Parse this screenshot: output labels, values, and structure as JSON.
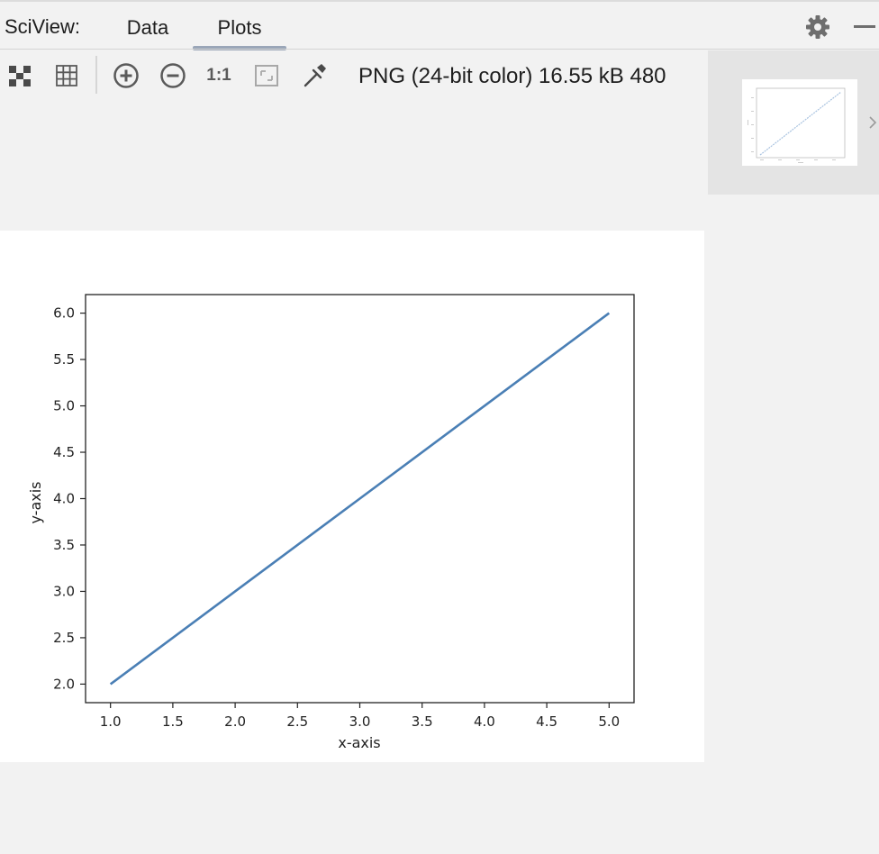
{
  "header": {
    "tool_title": "SciView:",
    "tabs": [
      {
        "label": "Data",
        "active": false
      },
      {
        "label": "Plots",
        "active": true
      }
    ]
  },
  "toolbar": {
    "image_info": "480 PNG (24-bit color) 16.55 kB",
    "icons": [
      "fit-to-window-icon",
      "grid-icon",
      "zoom-in-icon",
      "zoom-out-icon",
      "actual-size-icon",
      "background-icon",
      "color-picker-icon"
    ],
    "actual_size_label": "1:1"
  },
  "colors": {
    "line": "#4a7fb5",
    "panel_bg": "#f2f2f2",
    "thumb_panel_bg": "#e4e4e4",
    "tab_underline": "#9aa6b8"
  },
  "chart_data": {
    "type": "line",
    "title": "",
    "xlabel": "x-axis",
    "ylabel": "y-axis",
    "xlim": [
      0.8,
      5.2
    ],
    "ylim": [
      1.8,
      6.2
    ],
    "xticks": [
      1.0,
      1.5,
      2.0,
      2.5,
      3.0,
      3.5,
      4.0,
      4.5,
      5.0
    ],
    "yticks": [
      2.0,
      2.5,
      3.0,
      3.5,
      4.0,
      4.5,
      5.0,
      5.5,
      6.0
    ],
    "x": [
      1,
      2,
      3,
      4,
      5
    ],
    "series": [
      {
        "values": [
          2,
          3,
          4,
          5,
          6
        ]
      }
    ],
    "grid": false
  }
}
